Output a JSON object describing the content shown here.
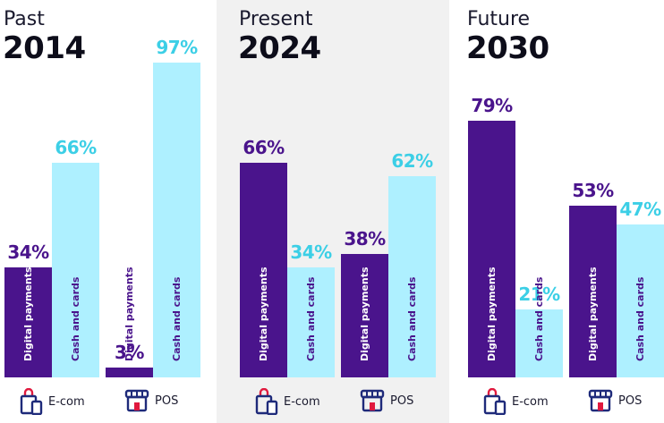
{
  "chart_data": [
    {
      "type": "bar",
      "era": "Past",
      "title": "2014",
      "highlighted": false,
      "categories": [
        "E-com",
        "POS"
      ],
      "series": [
        {
          "name": "Digital payments",
          "values": [
            34,
            3
          ]
        },
        {
          "name": "Cash and cards",
          "values": [
            66,
            97
          ]
        }
      ],
      "value_suffix": "%",
      "ylim": [
        0,
        100
      ]
    },
    {
      "type": "bar",
      "era": "Present",
      "title": "2024",
      "highlighted": true,
      "categories": [
        "E-com",
        "POS"
      ],
      "series": [
        {
          "name": "Digital payments",
          "values": [
            66,
            38
          ]
        },
        {
          "name": "Cash and cards",
          "values": [
            34,
            62
          ]
        }
      ],
      "value_suffix": "%",
      "ylim": [
        0,
        100
      ]
    },
    {
      "type": "bar",
      "era": "Future",
      "title": "2030",
      "highlighted": false,
      "categories": [
        "E-com",
        "POS"
      ],
      "series": [
        {
          "name": "Digital payments",
          "values": [
            79,
            53
          ]
        },
        {
          "name": "Cash and cards",
          "values": [
            21,
            47
          ]
        }
      ],
      "value_suffix": "%",
      "ylim": [
        0,
        100
      ]
    }
  ],
  "legend": {
    "ecom_label": "E-com",
    "pos_label": "POS",
    "ecom_icon": "shopping-bag-phone-icon",
    "pos_icon": "storefront-icon"
  },
  "colors": {
    "digital": "#4a148c",
    "digital_text": "#4a148c",
    "cash": "#aef0ff",
    "cash_text": "#3ccfe6",
    "panel_highlight": "#f1f1f1",
    "icon_accent": "#e0193e",
    "icon_main": "#1e2a7a"
  }
}
